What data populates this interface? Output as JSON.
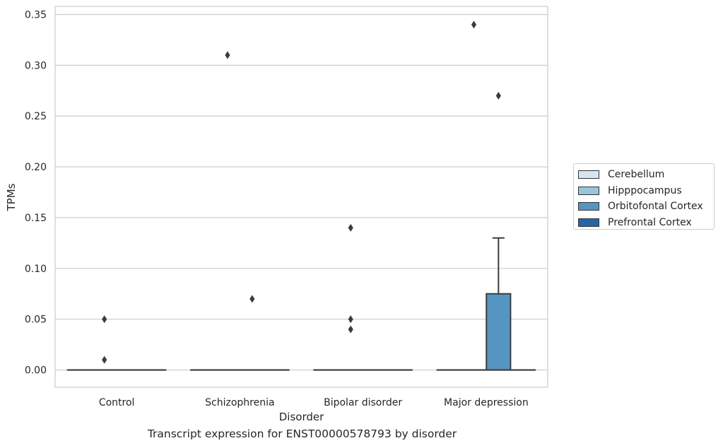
{
  "chart_data": {
    "type": "box",
    "title": "",
    "xlabel": "Disorder",
    "ylabel": "TPMs",
    "caption": "Transcript expression for ENST00000578793 by disorder",
    "ylim": [
      -0.017,
      0.358
    ],
    "yticks": [
      "0.00",
      "0.05",
      "0.10",
      "0.15",
      "0.20",
      "0.25",
      "0.30",
      "0.35"
    ],
    "ytick_values": [
      0,
      0.05,
      0.1,
      0.15,
      0.2,
      0.25,
      0.3,
      0.35
    ],
    "grid": true,
    "legend_position": "right",
    "categories": [
      "Control",
      "Schizophrenia",
      "Bipolar disorder",
      "Major depression"
    ],
    "series": [
      {
        "name": "Cerebellum",
        "color": "#d6e5f2",
        "boxes": [
          {
            "q1": 0,
            "median": 0,
            "q3": 0,
            "whisker_low": 0,
            "whisker_high": 0,
            "outliers": []
          },
          {
            "q1": 0,
            "median": 0,
            "q3": 0,
            "whisker_low": 0,
            "whisker_high": 0,
            "outliers": []
          },
          {
            "q1": 0,
            "median": 0,
            "q3": 0,
            "whisker_low": 0,
            "whisker_high": 0,
            "outliers": []
          },
          {
            "q1": 0,
            "median": 0,
            "q3": 0,
            "whisker_low": 0,
            "whisker_high": 0,
            "outliers": []
          }
        ]
      },
      {
        "name": "Hipppocampus",
        "color": "#9ac4de",
        "boxes": [
          {
            "q1": 0,
            "median": 0,
            "q3": 0,
            "whisker_low": 0,
            "whisker_high": 0,
            "outliers": [
              0.05,
              0.01
            ]
          },
          {
            "q1": 0,
            "median": 0,
            "q3": 0,
            "whisker_low": 0,
            "whisker_high": 0,
            "outliers": [
              0.31
            ]
          },
          {
            "q1": 0,
            "median": 0,
            "q3": 0,
            "whisker_low": 0,
            "whisker_high": 0,
            "outliers": [
              0.14,
              0.05,
              0.04
            ]
          },
          {
            "q1": 0,
            "median": 0,
            "q3": 0,
            "whisker_low": 0,
            "whisker_high": 0,
            "outliers": [
              0.34
            ]
          }
        ]
      },
      {
        "name": "Orbitofontal Cortex",
        "color": "#5595c3",
        "boxes": [
          {
            "q1": 0,
            "median": 0,
            "q3": 0,
            "whisker_low": 0,
            "whisker_high": 0,
            "outliers": []
          },
          {
            "q1": 0,
            "median": 0,
            "q3": 0,
            "whisker_low": 0,
            "whisker_high": 0,
            "outliers": [
              0.07
            ]
          },
          {
            "q1": 0,
            "median": 0,
            "q3": 0,
            "whisker_low": 0,
            "whisker_high": 0,
            "outliers": []
          },
          {
            "q1": 0,
            "median": 0,
            "q3": 0.075,
            "whisker_low": 0,
            "whisker_high": 0.13,
            "outliers": [
              0.27
            ]
          }
        ]
      },
      {
        "name": "Prefrontal Cortex",
        "color": "#2466a7",
        "boxes": [
          {
            "q1": 0,
            "median": 0,
            "q3": 0,
            "whisker_low": 0,
            "whisker_high": 0,
            "outliers": []
          },
          {
            "q1": 0,
            "median": 0,
            "q3": 0,
            "whisker_low": 0,
            "whisker_high": 0,
            "outliers": []
          },
          {
            "q1": 0,
            "median": 0,
            "q3": 0,
            "whisker_low": 0,
            "whisker_high": 0,
            "outliers": []
          },
          {
            "q1": 0,
            "median": 0,
            "q3": 0,
            "whisker_low": 0,
            "whisker_high": 0,
            "outliers": []
          }
        ]
      }
    ]
  }
}
